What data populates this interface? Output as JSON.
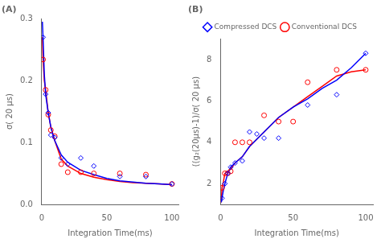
{
  "chart_data": [
    {
      "type": "line",
      "title": "(A)",
      "xlabel": "Integration Time(ms)",
      "ylabel": "σ( 20 μs)",
      "xlim": [
        0,
        105
      ],
      "ylim": [
        0,
        0.3
      ],
      "xticks": [
        0,
        50,
        100
      ],
      "yticks": [
        {
          "value": 0,
          "label": "0.0"
        },
        0.1,
        0.2,
        0.3
      ],
      "series": [
        {
          "name": "Compressed DCS",
          "type": "line",
          "color": "#0000FF",
          "marker": "diamond",
          "x": [
            0.5,
            1,
            2,
            3,
            5,
            7,
            10,
            15,
            20,
            30,
            40,
            50,
            60,
            70,
            80,
            90,
            100
          ],
          "values": [
            0.295,
            0.27,
            0.21,
            0.178,
            0.148,
            0.125,
            0.103,
            0.08,
            0.068,
            0.055,
            0.048,
            0.042,
            0.038,
            0.036,
            0.034,
            0.033,
            0.032
          ]
        },
        {
          "name": "Conventional DCS",
          "type": "line",
          "color": "#FF0000",
          "marker": "circle",
          "x": [
            0.5,
            1,
            2,
            3,
            5,
            7,
            10,
            15,
            20,
            30,
            40,
            50,
            60,
            70,
            80,
            90,
            100
          ],
          "values": [
            0.27,
            0.234,
            0.2,
            0.185,
            0.148,
            0.125,
            0.103,
            0.073,
            0.062,
            0.05,
            0.044,
            0.04,
            0.037,
            0.035,
            0.034,
            0.033,
            0.032
          ]
        },
        {
          "type": "scatter",
          "color": "#0000FF",
          "marker": "diamond",
          "x": [
            1,
            3,
            5,
            7,
            10,
            15,
            20,
            30,
            40,
            60,
            80,
            100
          ],
          "values": [
            0.27,
            0.178,
            0.148,
            0.112,
            0.108,
            0.075,
            0.065,
            0.075,
            0.062,
            0.045,
            0.045,
            0.033
          ]
        },
        {
          "type": "scatter",
          "color": "#FF0000",
          "marker": "circle",
          "x": [
            1,
            3,
            5,
            7,
            10,
            15,
            20,
            30,
            40,
            60,
            80,
            100
          ],
          "values": [
            0.234,
            0.185,
            0.145,
            0.12,
            0.11,
            0.065,
            0.052,
            0.052,
            0.05,
            0.05,
            0.048,
            0.033
          ]
        }
      ]
    },
    {
      "type": "line",
      "title": "(B)",
      "legend": "top",
      "xlabel": "Integration Time(ms)",
      "ylabel": "((g₂(20μs)-1)/σ( 20 μs)",
      "xlim": [
        0,
        105
      ],
      "ylim": [
        1,
        9
      ],
      "xticks": [
        0,
        50,
        100
      ],
      "yticks": [
        2,
        4,
        6,
        8
      ],
      "series": [
        {
          "name": "Compressed DCS",
          "type": "line",
          "color": "#0000FF",
          "marker": "diamond",
          "x": [
            0.5,
            1,
            2,
            3,
            5,
            7,
            10,
            15,
            20,
            30,
            40,
            50,
            60,
            70,
            80,
            90,
            100
          ],
          "values": [
            1.1,
            1.3,
            1.7,
            2.0,
            2.5,
            2.8,
            3.0,
            3.3,
            3.8,
            4.5,
            5.2,
            5.7,
            6.1,
            6.6,
            7.0,
            7.6,
            8.3
          ]
        },
        {
          "name": "Conventional DCS",
          "type": "line",
          "color": "#FF0000",
          "marker": "circle",
          "x": [
            0.5,
            1,
            2,
            3,
            5,
            7,
            10,
            15,
            20,
            30,
            40,
            50,
            60,
            70,
            80,
            90,
            100
          ],
          "values": [
            1.1,
            1.8,
            2.1,
            2.5,
            2.6,
            2.7,
            3.0,
            3.3,
            3.8,
            4.5,
            5.2,
            5.7,
            6.2,
            6.7,
            7.2,
            7.4,
            7.5
          ]
        },
        {
          "type": "scatter",
          "color": "#0000FF",
          "marker": "diamond",
          "x": [
            1,
            3,
            5,
            7,
            10,
            15,
            20,
            25,
            30,
            40,
            60,
            80,
            100
          ],
          "values": [
            1.3,
            2.0,
            2.5,
            2.8,
            3.0,
            3.1,
            4.5,
            4.4,
            4.2,
            4.2,
            5.8,
            6.3,
            8.3
          ]
        },
        {
          "type": "scatter",
          "color": "#FF0000",
          "marker": "circle",
          "x": [
            1,
            3,
            5,
            7,
            10,
            15,
            20,
            30,
            40,
            50,
            60,
            80,
            100
          ],
          "values": [
            1.8,
            2.5,
            2.5,
            2.6,
            4.0,
            4.0,
            4.0,
            5.3,
            5.0,
            5.0,
            6.9,
            7.5,
            7.5
          ]
        }
      ]
    }
  ]
}
